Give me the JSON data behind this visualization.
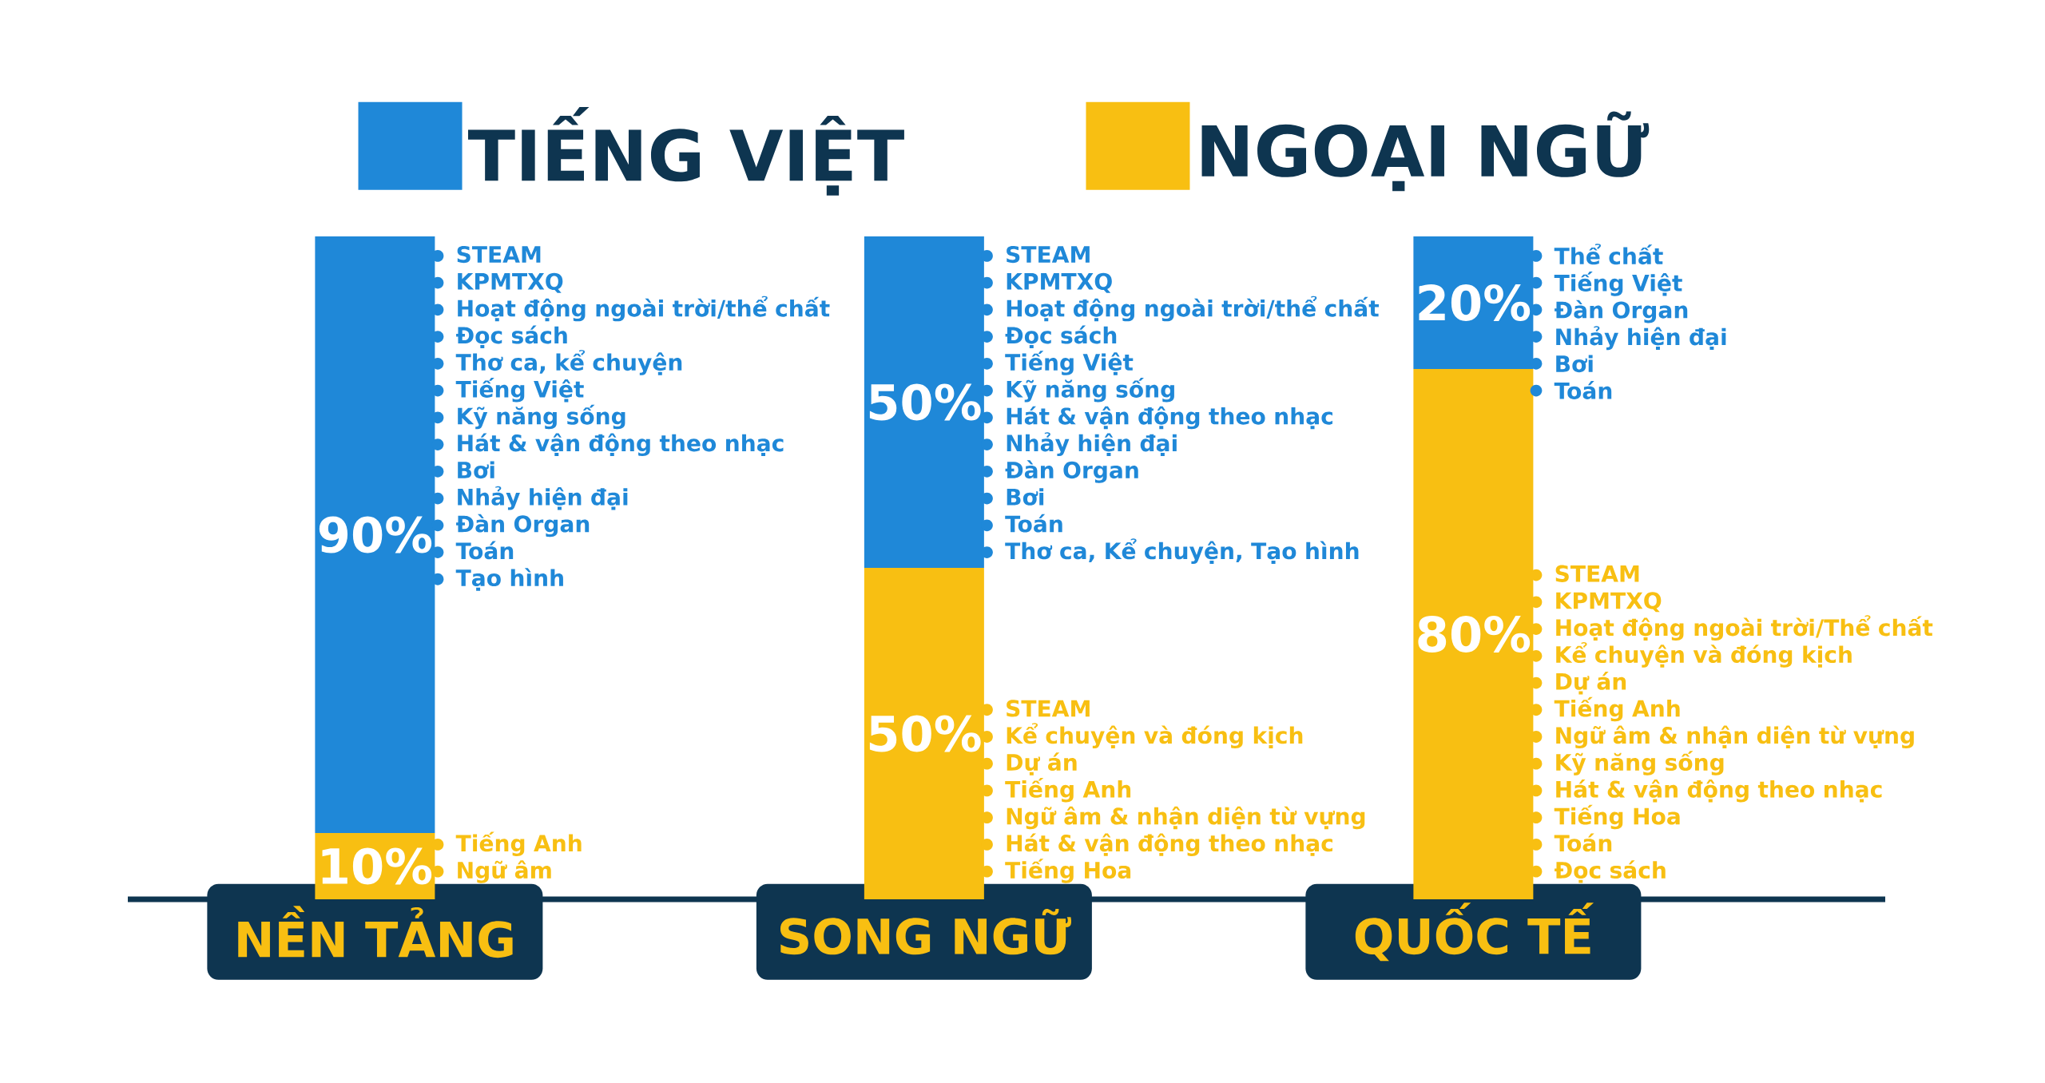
{
  "chart_data": {
    "type": "bar",
    "stacked": true,
    "legend": "top",
    "categories": [
      "NỀN TẢNG",
      "SONG NGỮ",
      "QUỐC TẾ"
    ],
    "series": [
      {
        "name": "NGOẠI NGỮ",
        "color": "#f8bf12",
        "values": [
          10,
          50,
          80
        ],
        "value_labels": [
          "10%",
          "50%",
          "80%"
        ]
      },
      {
        "name": "TIẾNG VIỆT",
        "color": "#1f88d8",
        "values": [
          90,
          50,
          20
        ],
        "value_labels": [
          "90%",
          "50%",
          "20%"
        ]
      }
    ],
    "annotations": [
      "STEAM\nKPMTXQ\nHoạt động ngoài trời/thể chất\nĐọc sách\nThơ ca, kể chuyện\nTiếng Việt\nKỹ năng sống\nHát & vận động theo nhạc\nBơi\nNhảy hiện đại\nĐàn Organ\nToán\nTạo hình",
      "Tiếng Anh\nNgữ âm",
      "STEAM\nKPMTXQ\nHoạt động ngoài trời/thể chất\nĐọc sách\nTiếng Việt\nKỹ năng sống\nHát & vận động theo nhạc\nNhảy hiện đại\nĐàn Organ\nBơi\nToán\nThơ ca, Kể chuyện, Tạo hình",
      "STEAM\nKể chuyện và đóng kịch\nDự án\nTiếng Anh\nNgữ âm & nhận diện từ vựng\nHát & vận động theo nhạc\nTiếng Hoa",
      "Thể chất\nTiếng Việt\nĐàn Organ\nNhảy hiện đại\nBơi\nToán",
      "STEAM\nKPMTXQ\nHoạt động ngoài trời/Thể chất\nKể chuyện và đóng kịch\nDự án\nTiếng Anh\nNgữ âm & nhận diện từ vựng\nKỹ năng sống\nHát & vận động theo nhạc\nTiếng Hoa\nToán\nĐọc sách"
    ]
  }
}
